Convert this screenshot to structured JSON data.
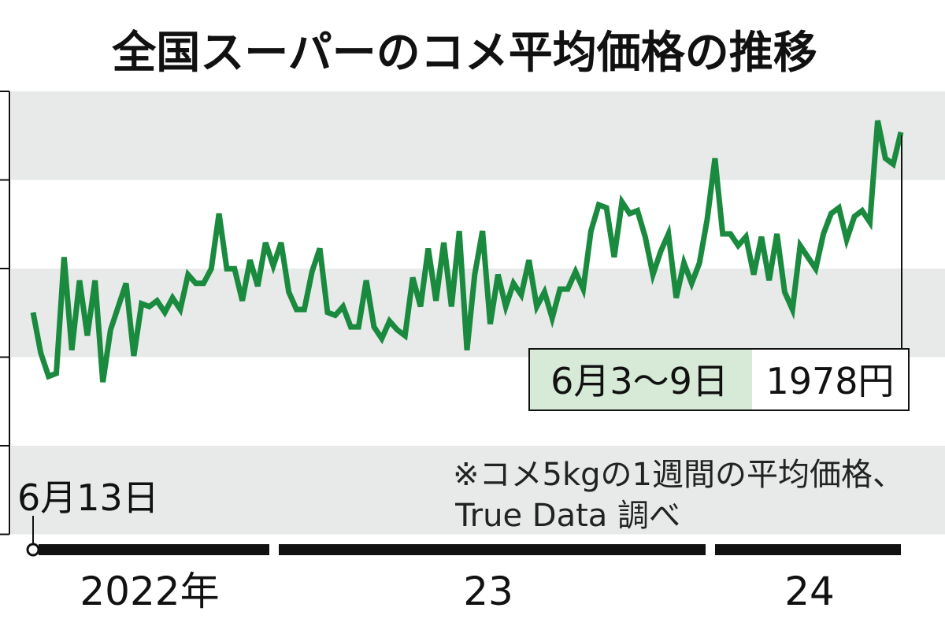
{
  "chart_data": {
    "type": "line",
    "title": "全国スーパーのコメ平均価格の推移",
    "xlabel": "",
    "ylabel": "",
    "start_label": "6月13日",
    "note_line1": "※コメ5kgの1週間の平均価格、",
    "note_line2": "True Data 調べ",
    "callout": {
      "label": "6月3～9日",
      "value": "1978円"
    },
    "year_labels": [
      "2022年",
      "23",
      "24"
    ],
    "grid": "banded",
    "colors": {
      "line": "#1a8a3e",
      "band": "#e8eaea",
      "callout_bg": "#d6ead7",
      "axis": "#111111"
    },
    "series": [
      {
        "values": [
          1866,
          1852,
          1844,
          1845,
          1885,
          1853,
          1877,
          1858,
          1877,
          1842,
          1860,
          1868,
          1876,
          1851,
          1869,
          1868,
          1870,
          1866,
          1871,
          1867,
          1879,
          1876,
          1876,
          1881,
          1900,
          1881,
          1881,
          1870,
          1884,
          1875,
          1890,
          1882,
          1890,
          1873,
          1867,
          1867,
          1880,
          1888,
          1866,
          1865,
          1868,
          1861,
          1861,
          1877,
          1861,
          1857,
          1863,
          1860,
          1858,
          1878,
          1868,
          1888,
          1870,
          1890,
          1868,
          1894,
          1853,
          1879,
          1894,
          1862,
          1879,
          1868,
          1876,
          1872,
          1884,
          1868,
          1873,
          1864,
          1874,
          1874,
          1880,
          1874,
          1894,
          1903,
          1902,
          1885,
          1904,
          1900,
          1901,
          1892,
          1879,
          1887,
          1893,
          1871,
          1883,
          1876,
          1883,
          1898,
          1919,
          1893,
          1893,
          1889,
          1892,
          1879,
          1892,
          1877,
          1893,
          1873,
          1867,
          1889,
          1885,
          1881,
          1893,
          1900,
          1902,
          1891,
          1899,
          1901,
          1897,
          1932,
          1919,
          1917,
          1928
        ]
      }
    ]
  }
}
